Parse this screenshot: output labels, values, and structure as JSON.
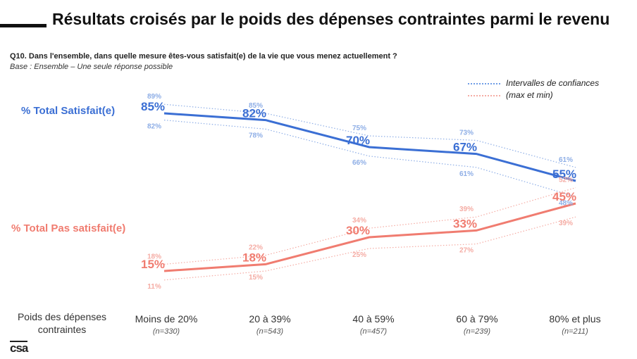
{
  "header": {
    "title": "Résultats croisés par le poids des dépenses contraintes parmi le revenu",
    "question": "Q10. Dans l'ensemble, dans quelle mesure êtes-vous satisfait(e) de la vie que vous menez actuellement ?",
    "base": "Base : Ensemble – Une seule réponse possible"
  },
  "legend": {
    "line1": "Intervalles de confiances",
    "line2": "(max et min)"
  },
  "colors": {
    "satisfied": "#3b6fd4",
    "satisfied_light": "#8eaee6",
    "unsatisfied": "#f07c70",
    "unsatisfied_light": "#f5aca4"
  },
  "axis": {
    "header": "Poids des dépenses contraintes"
  },
  "categories": [
    {
      "label": "Moins de 20%",
      "n": "(n=330)"
    },
    {
      "label": "20 à 39%",
      "n": "(n=543)"
    },
    {
      "label": "40 à 59%",
      "n": "(n=457)"
    },
    {
      "label": "60 à 79%",
      "n": "(n=239)"
    },
    {
      "label": "80% et plus",
      "n": "(n=211)"
    }
  ],
  "chart_data": {
    "type": "line",
    "x": [
      "Moins de 20%",
      "20 à 39%",
      "40 à 59%",
      "60 à 79%",
      "80% et plus"
    ],
    "series": [
      {
        "name": "% Total Satisfait(e)",
        "values": [
          85,
          82,
          70,
          67,
          55
        ],
        "labels": [
          "85%",
          "82%",
          "70%",
          "67%",
          "55%"
        ],
        "max": [
          89,
          85,
          75,
          73,
          61
        ],
        "max_labels": [
          "89%",
          "85%",
          "75%",
          "73%",
          "61%"
        ],
        "min": [
          82,
          78,
          66,
          61,
          48
        ],
        "min_labels": [
          "82%",
          "78%",
          "66%",
          "61%",
          "48%"
        ]
      },
      {
        "name": "% Total Pas satisfait(e)",
        "values": [
          15,
          18,
          30,
          33,
          45
        ],
        "labels": [
          "15%",
          "18%",
          "30%",
          "33%",
          "45%"
        ],
        "max": [
          18,
          22,
          34,
          39,
          52
        ],
        "max_labels": [
          "18%",
          "22%",
          "34%",
          "39%",
          "52%"
        ],
        "min": [
          11,
          15,
          25,
          27,
          39
        ],
        "min_labels": [
          "11%",
          "15%",
          "25%",
          "27%",
          "39%"
        ]
      }
    ]
  },
  "logo": "csa"
}
